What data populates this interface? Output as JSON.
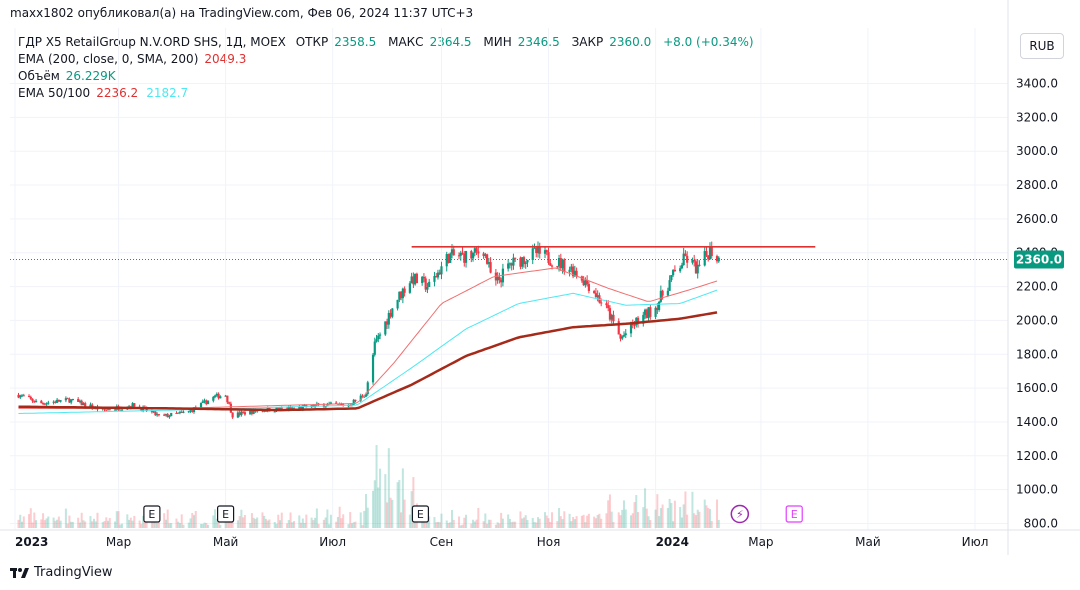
{
  "header": {
    "published": "maxx1802 опубликовал(а) на TradingView.com, Фев 06, 2024 11:37 UTC+3"
  },
  "legend": {
    "symbol": "ГДР X5 RetailGroup N.V.ORD SHS, 1Д, MOEX",
    "ohlc": [
      {
        "label": "ОТКР",
        "value": "2358.5"
      },
      {
        "label": "МАКС",
        "value": "2364.5"
      },
      {
        "label": "МИН",
        "value": "2346.5"
      },
      {
        "label": "ЗАКР",
        "value": "2360.0"
      }
    ],
    "change": "+8.0 (+0.34%)",
    "ema200_label": "EMA (200, close, 0, SMA, 200)",
    "ema200_value": "2049.3",
    "volume_label": "Объём",
    "volume_value": "26.229K",
    "ema_pair_label": "EMA 50/100",
    "ema50_value": "2236.2",
    "ema100_value": "2182.7"
  },
  "currency_button": "RUB",
  "last_price_label": "2360.0",
  "footer": {
    "brand": "TradingView"
  },
  "colors": {
    "up": "#089981",
    "down": "#f23645",
    "ema50": "#f07070",
    "ema100": "#4de8f2",
    "ema200": "#a52a1a",
    "resistance": "#e03131",
    "earnings": "#131722",
    "dividends": "#9c27b0",
    "future_earnings": "#e040fb"
  },
  "chart_data": {
    "type": "candlestick",
    "y_ticks": [
      "3400.0",
      "3200.0",
      "3000.0",
      "2800.0",
      "2600.0",
      "2400.0",
      "2200.0",
      "2000.0",
      "1800.0",
      "1600.0",
      "1400.0",
      "1200.0",
      "1000.0",
      "800.0"
    ],
    "ylim": [
      780,
      3480
    ],
    "x_ticks": [
      {
        "label": "2023",
        "date": "2023-01",
        "bold": true
      },
      {
        "label": "Мар",
        "date": "2023-03"
      },
      {
        "label": "Май",
        "date": "2023-05"
      },
      {
        "label": "Июл",
        "date": "2023-07"
      },
      {
        "label": "Сен",
        "date": "2023-09"
      },
      {
        "label": "Ноя",
        "date": "2023-11"
      },
      {
        "label": "2024",
        "date": "2024-01",
        "bold": true
      },
      {
        "label": "Мар",
        "date": "2024-03"
      },
      {
        "label": "Май",
        "date": "2024-05"
      },
      {
        "label": "Июл",
        "date": "2024-07"
      }
    ],
    "price_anchors": [
      {
        "date": "2023-01-03",
        "price": 1560
      },
      {
        "date": "2023-01-15",
        "price": 1510
      },
      {
        "date": "2023-02-01",
        "price": 1530
      },
      {
        "date": "2023-02-20",
        "price": 1470
      },
      {
        "date": "2023-03-10",
        "price": 1500
      },
      {
        "date": "2023-03-25",
        "price": 1430
      },
      {
        "date": "2023-04-10",
        "price": 1460
      },
      {
        "date": "2023-04-25",
        "price": 1550
      },
      {
        "date": "2023-05-01",
        "price": 1560
      },
      {
        "date": "2023-05-05",
        "price": 1440
      },
      {
        "date": "2023-05-20",
        "price": 1470
      },
      {
        "date": "2023-06-10",
        "price": 1480
      },
      {
        "date": "2023-06-25",
        "price": 1500
      },
      {
        "date": "2023-07-10",
        "price": 1500
      },
      {
        "date": "2023-07-20",
        "price": 1570
      },
      {
        "date": "2023-07-25",
        "price": 1850
      },
      {
        "date": "2023-08-05",
        "price": 2100
      },
      {
        "date": "2023-08-15",
        "price": 2250
      },
      {
        "date": "2023-08-25",
        "price": 2200
      },
      {
        "date": "2023-09-05",
        "price": 2380
      },
      {
        "date": "2023-09-18",
        "price": 2380
      },
      {
        "date": "2023-09-25",
        "price": 2420
      },
      {
        "date": "2023-10-01",
        "price": 2200
      },
      {
        "date": "2023-10-10",
        "price": 2330
      },
      {
        "date": "2023-10-25",
        "price": 2400
      },
      {
        "date": "2023-11-05",
        "price": 2350
      },
      {
        "date": "2023-11-15",
        "price": 2300
      },
      {
        "date": "2023-11-25",
        "price": 2200
      },
      {
        "date": "2023-12-05",
        "price": 2050
      },
      {
        "date": "2023-12-12",
        "price": 1890
      },
      {
        "date": "2023-12-20",
        "price": 1980
      },
      {
        "date": "2024-01-01",
        "price": 2080
      },
      {
        "date": "2024-01-10",
        "price": 2250
      },
      {
        "date": "2024-01-18",
        "price": 2370
      },
      {
        "date": "2024-01-25",
        "price": 2300
      },
      {
        "date": "2024-02-01",
        "price": 2420
      },
      {
        "date": "2024-02-06",
        "price": 2360
      }
    ],
    "ema200_anchors": [
      {
        "date": "2023-01-03",
        "price": 1490
      },
      {
        "date": "2023-04-01",
        "price": 1480
      },
      {
        "date": "2023-06-01",
        "price": 1470
      },
      {
        "date": "2023-07-15",
        "price": 1480
      },
      {
        "date": "2023-08-15",
        "price": 1620
      },
      {
        "date": "2023-09-15",
        "price": 1790
      },
      {
        "date": "2023-10-15",
        "price": 1900
      },
      {
        "date": "2023-11-15",
        "price": 1960
      },
      {
        "date": "2023-12-15",
        "price": 1980
      },
      {
        "date": "2024-01-15",
        "price": 2010
      },
      {
        "date": "2024-02-06",
        "price": 2049.3
      }
    ],
    "ema100_anchors": [
      {
        "date": "2023-01-03",
        "price": 1450
      },
      {
        "date": "2023-04-01",
        "price": 1470
      },
      {
        "date": "2023-07-15",
        "price": 1500
      },
      {
        "date": "2023-08-15",
        "price": 1720
      },
      {
        "date": "2023-09-15",
        "price": 1950
      },
      {
        "date": "2023-10-15",
        "price": 2100
      },
      {
        "date": "2023-11-15",
        "price": 2160
      },
      {
        "date": "2023-12-15",
        "price": 2090
      },
      {
        "date": "2024-01-15",
        "price": 2100
      },
      {
        "date": "2024-02-06",
        "price": 2182.7
      }
    ],
    "ema50_anchors": [
      {
        "date": "2023-01-03",
        "price": 1480
      },
      {
        "date": "2023-04-01",
        "price": 1480
      },
      {
        "date": "2023-07-15",
        "price": 1510
      },
      {
        "date": "2023-08-05",
        "price": 1750
      },
      {
        "date": "2023-09-01",
        "price": 2100
      },
      {
        "date": "2023-10-01",
        "price": 2260
      },
      {
        "date": "2023-11-05",
        "price": 2310
      },
      {
        "date": "2023-12-05",
        "price": 2190
      },
      {
        "date": "2023-12-28",
        "price": 2110
      },
      {
        "date": "2024-01-20",
        "price": 2180
      },
      {
        "date": "2024-02-06",
        "price": 2236.2
      }
    ],
    "resistance_line": {
      "start": "2023-08-15",
      "end": "2024-04-01",
      "price": 2435
    },
    "last_price": 2360.0,
    "events": [
      {
        "type": "earnings",
        "date": "2023-03-20",
        "glyph": "E"
      },
      {
        "type": "earnings",
        "date": "2023-05-01",
        "glyph": "E"
      },
      {
        "type": "earnings",
        "date": "2023-08-20",
        "glyph": "E"
      },
      {
        "type": "dividends",
        "date": "2024-02-18",
        "glyph": "⚡"
      },
      {
        "type": "future_earnings",
        "date": "2024-03-20",
        "glyph": "E"
      }
    ],
    "volume_note": "26.229K"
  }
}
